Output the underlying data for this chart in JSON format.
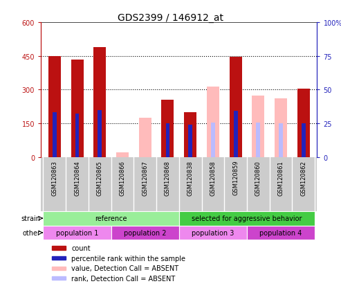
{
  "title": "GDS2399 / 146912_at",
  "samples": [
    "GSM120863",
    "GSM120864",
    "GSM120865",
    "GSM120866",
    "GSM120867",
    "GSM120868",
    "GSM120838",
    "GSM120858",
    "GSM120859",
    "GSM120860",
    "GSM120861",
    "GSM120862"
  ],
  "count_present": [
    450,
    435,
    490,
    0,
    0,
    255,
    200,
    0,
    445,
    0,
    0,
    305
  ],
  "count_absent": [
    0,
    0,
    0,
    20,
    175,
    0,
    0,
    315,
    0,
    275,
    260,
    0
  ],
  "rank_present": [
    200,
    195,
    210,
    0,
    0,
    150,
    145,
    0,
    205,
    0,
    0,
    150
  ],
  "rank_absent": [
    0,
    0,
    0,
    0,
    0,
    0,
    0,
    155,
    0,
    155,
    150,
    0
  ],
  "ylim_left": [
    0,
    600
  ],
  "ylim_right": [
    0,
    100
  ],
  "yticks_left": [
    0,
    150,
    300,
    450,
    600
  ],
  "yticks_right": [
    0,
    25,
    50,
    75,
    100
  ],
  "ytick_labels_left": [
    "0",
    "150",
    "300",
    "450",
    "600"
  ],
  "ytick_labels_right": [
    "0",
    "25",
    "50",
    "75",
    "100%"
  ],
  "color_count": "#bb1111",
  "color_rank": "#2222bb",
  "color_count_absent": "#ffbbbb",
  "color_rank_absent": "#bbbbff",
  "color_axis_left": "#bb1111",
  "color_axis_right": "#2222bb",
  "grid_yticks": [
    150,
    300,
    450
  ],
  "bar_bg_color": "#cccccc",
  "strain_labels": [
    {
      "text": "reference",
      "start": 0,
      "end": 6,
      "color": "#99ee99"
    },
    {
      "text": "selected for aggressive behavior",
      "start": 6,
      "end": 12,
      "color": "#44cc44"
    }
  ],
  "other_labels": [
    {
      "text": "population 1",
      "start": 0,
      "end": 3,
      "color": "#ee88ee"
    },
    {
      "text": "population 2",
      "start": 3,
      "end": 6,
      "color": "#cc44cc"
    },
    {
      "text": "population 3",
      "start": 6,
      "end": 9,
      "color": "#ee88ee"
    },
    {
      "text": "population 4",
      "start": 9,
      "end": 12,
      "color": "#cc44cc"
    }
  ],
  "legend_items": [
    {
      "label": "count",
      "color": "#bb1111"
    },
    {
      "label": "percentile rank within the sample",
      "color": "#2222bb"
    },
    {
      "label": "value, Detection Call = ABSENT",
      "color": "#ffbbbb"
    },
    {
      "label": "rank, Detection Call = ABSENT",
      "color": "#bbbbff"
    }
  ]
}
